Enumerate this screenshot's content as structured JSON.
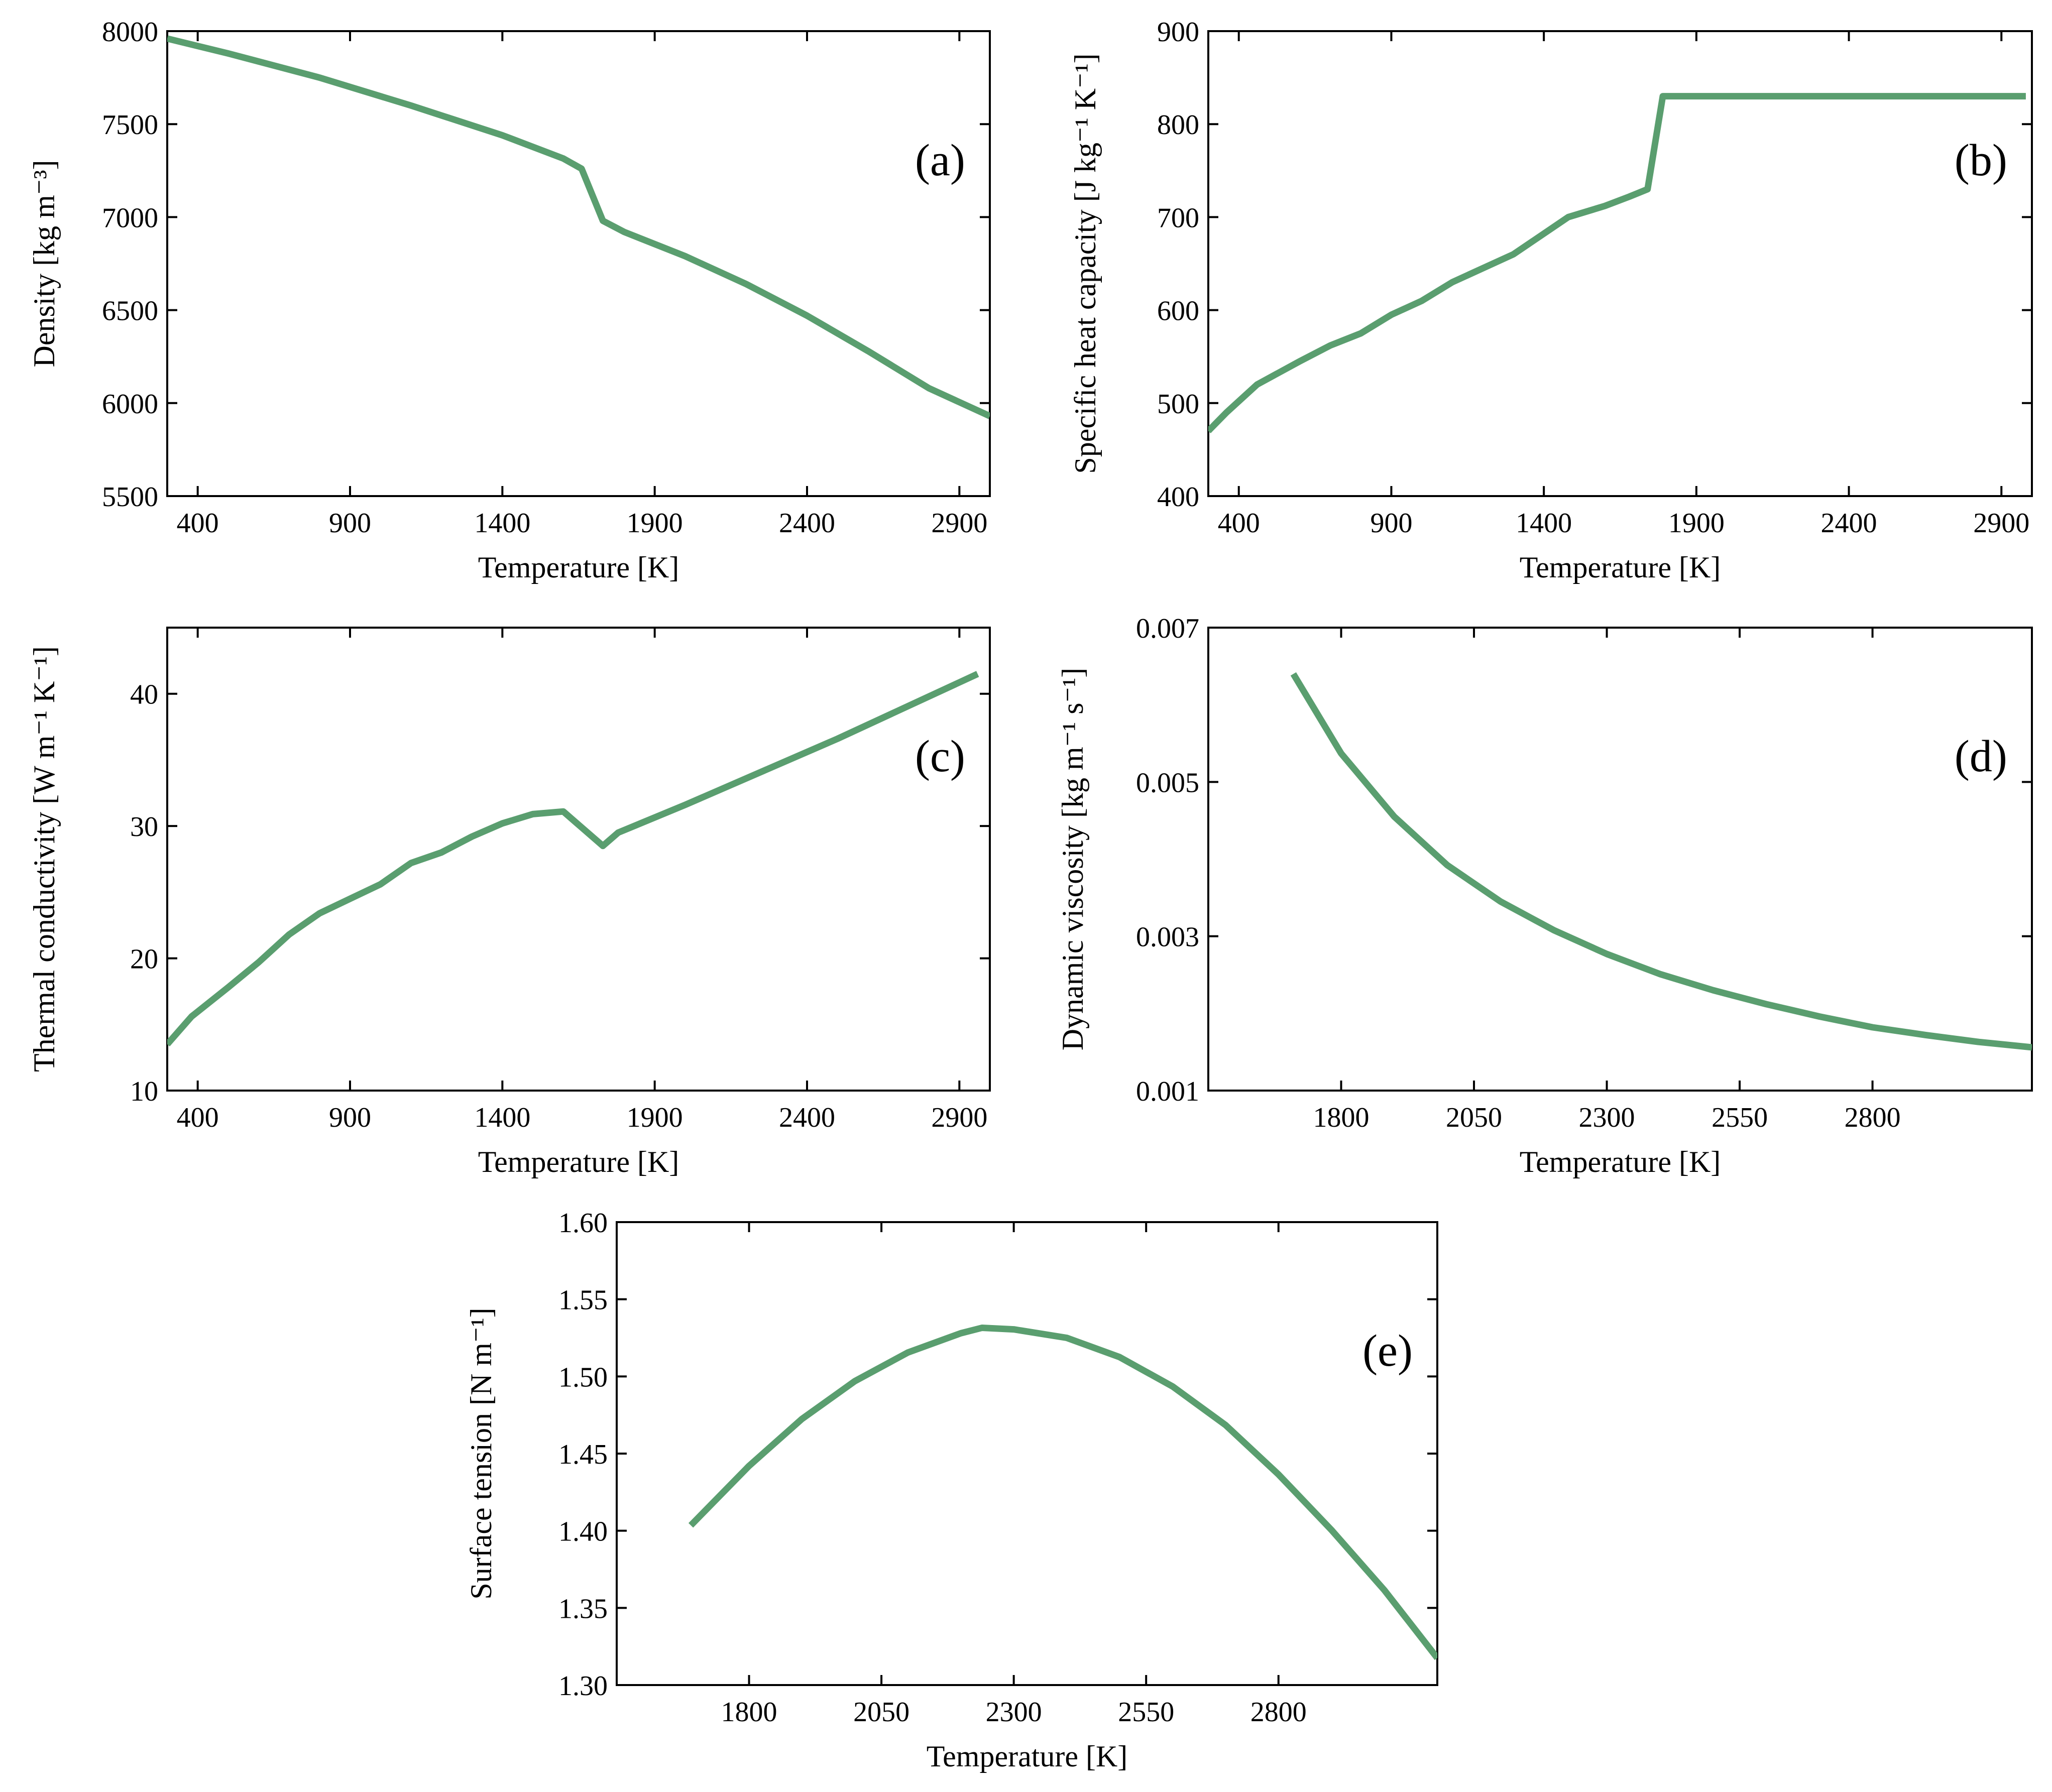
{
  "colors": {
    "line": "#5a9e6f",
    "axes": "#000000",
    "background": "#ffffff"
  },
  "chart_data": [
    {
      "id": "a",
      "type": "line",
      "panel_label": "(a)",
      "xlabel": "Temperature [K]",
      "ylabel": "Density [kg m⁻³]",
      "xlim": [
        300,
        3000
      ],
      "ylim": [
        5500,
        8000
      ],
      "xticks": [
        400,
        900,
        1400,
        1900,
        2400,
        2900
      ],
      "yticks": [
        5500,
        6000,
        6500,
        7000,
        7500,
        8000
      ],
      "series": [
        {
          "name": "Density",
          "x": [
            300,
            500,
            800,
            1100,
            1400,
            1600,
            1660,
            1730,
            1800,
            2000,
            2200,
            2400,
            2600,
            2800,
            3000
          ],
          "y": [
            7960,
            7880,
            7750,
            7600,
            7440,
            7315,
            7260,
            6980,
            6920,
            6790,
            6640,
            6470,
            6280,
            6080,
            5930
          ]
        }
      ]
    },
    {
      "id": "b",
      "type": "line",
      "panel_label": "(b)",
      "xlabel": "Temperature [K]",
      "ylabel": "Specific heat capacity  [J kg⁻¹ K⁻¹]",
      "xlim": [
        300,
        3000
      ],
      "ylim": [
        400,
        900
      ],
      "xticks": [
        400,
        900,
        1400,
        1900,
        2400,
        2900
      ],
      "yticks": [
        400,
        500,
        600,
        700,
        800,
        900
      ],
      "series": [
        {
          "name": "Specific heat capacity",
          "x": [
            300,
            360,
            460,
            600,
            700,
            800,
            900,
            1000,
            1100,
            1300,
            1480,
            1600,
            1680,
            1740,
            1790,
            2000,
            2500,
            2980
          ],
          "y": [
            470,
            490,
            520,
            545,
            562,
            575,
            595,
            610,
            630,
            660,
            700,
            712,
            722,
            730,
            830,
            830,
            830,
            830
          ]
        }
      ]
    },
    {
      "id": "c",
      "type": "line",
      "panel_label": "(c)",
      "xlabel": "Temperature [K]",
      "ylabel": "Thermal conductivity  [W m⁻¹ K⁻¹]",
      "xlim": [
        300,
        3000
      ],
      "ylim": [
        10,
        45
      ],
      "xticks": [
        400,
        900,
        1400,
        1900,
        2400,
        2900
      ],
      "yticks": [
        10,
        20,
        30,
        40
      ],
      "series": [
        {
          "name": "Thermal conductivity",
          "x": [
            300,
            380,
            500,
            600,
            700,
            800,
            900,
            1000,
            1100,
            1200,
            1300,
            1400,
            1500,
            1600,
            1730,
            1780,
            2000,
            2500,
            2960
          ],
          "y": [
            13.5,
            15.6,
            17.8,
            19.7,
            21.8,
            23.4,
            24.5,
            25.6,
            27.2,
            28.0,
            29.2,
            30.2,
            30.9,
            31.1,
            28.5,
            29.5,
            31.6,
            36.6,
            41.5
          ]
        }
      ]
    },
    {
      "id": "d",
      "type": "line",
      "panel_label": "(d)",
      "xlabel": "Temperature [K]",
      "ylabel": "Dynamic viscosity  [kg m⁻¹ s⁻¹]",
      "xlim": [
        1550,
        3100
      ],
      "ylim": [
        0.001,
        0.007
      ],
      "xticks": [
        1800,
        2050,
        2300,
        2550,
        2800
      ],
      "yticks": [
        0.001,
        0.003,
        0.005,
        0.007
      ],
      "ytick_labels": [
        "0.001",
        "0.003",
        "0.005",
        "0.007"
      ],
      "series": [
        {
          "name": "Dynamic viscosity",
          "x": [
            1710,
            1800,
            1900,
            2000,
            2100,
            2200,
            2300,
            2400,
            2500,
            2600,
            2700,
            2800,
            2900,
            3000,
            3100
          ],
          "y": [
            0.0064,
            0.00537,
            0.00455,
            0.00392,
            0.00345,
            0.00308,
            0.00277,
            0.00251,
            0.0023,
            0.00212,
            0.00196,
            0.00182,
            0.00172,
            0.00163,
            0.00156
          ]
        }
      ]
    },
    {
      "id": "e",
      "type": "line",
      "panel_label": "(e)",
      "xlabel": "Temperature [K]",
      "ylabel": "Surface tension  [N m⁻¹]",
      "xlim": [
        1550,
        3100
      ],
      "ylim": [
        1.3,
        1.6
      ],
      "xticks": [
        1800,
        2050,
        2300,
        2550,
        2800
      ],
      "yticks": [
        1.3,
        1.35,
        1.4,
        1.45,
        1.5,
        1.55,
        1.6
      ],
      "ytick_labels": [
        "1.30",
        "1.35",
        "1.40",
        "1.45",
        "1.50",
        "1.55",
        "1.60"
      ],
      "series": [
        {
          "name": "Surface tension",
          "x": [
            1690,
            1800,
            1900,
            2000,
            2100,
            2200,
            2240,
            2300,
            2400,
            2500,
            2600,
            2700,
            2800,
            2900,
            3000,
            3100
          ],
          "y": [
            1.4035,
            1.442,
            1.4725,
            1.497,
            1.5155,
            1.528,
            1.5315,
            1.5305,
            1.525,
            1.5125,
            1.4935,
            1.4685,
            1.4365,
            1.4005,
            1.3615,
            1.3175
          ]
        }
      ]
    }
  ]
}
